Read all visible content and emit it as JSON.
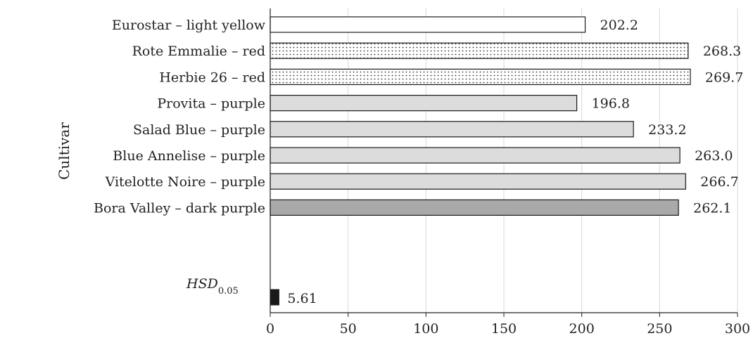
{
  "chart_data": {
    "type": "bar",
    "orientation": "horizontal",
    "ylabel": "Cultivar",
    "xlabel": "",
    "xlim": [
      0,
      300
    ],
    "xticks": [
      0,
      50,
      100,
      150,
      200,
      250,
      300
    ],
    "grid": "vertical",
    "bars": [
      {
        "label": "Eurostar – light yellow",
        "value": 202.2,
        "value_label": "202.2",
        "fill": "white"
      },
      {
        "label": "Rote Emmalie – red",
        "value": 268.3,
        "value_label": "268.3",
        "fill": "dotted"
      },
      {
        "label": "Herbie 26 – red",
        "value": 269.7,
        "value_label": "269.7",
        "fill": "dotted"
      },
      {
        "label": "Provita – purple",
        "value": 196.8,
        "value_label": "196.8",
        "fill": "light-gray"
      },
      {
        "label": "Salad Blue – purple",
        "value": 233.2,
        "value_label": "233.2",
        "fill": "light-gray"
      },
      {
        "label": "Blue Annelise – purple",
        "value": 263.0,
        "value_label": "263.0",
        "fill": "light-gray"
      },
      {
        "label": "Vitelotte Noire – purple",
        "value": 266.7,
        "value_label": "266.7",
        "fill": "light-gray"
      },
      {
        "label": "Bora Valley – dark purple",
        "value": 262.1,
        "value_label": "262.1",
        "fill": "dark-gray"
      }
    ],
    "hsd": {
      "label": "HSD",
      "subscript": "0.05",
      "value": 5.61,
      "value_label": "5.61",
      "fill": "black"
    }
  },
  "colors": {
    "white": "#ffffff",
    "light-gray": "#dcdcdc",
    "dark-gray": "#a9a9a9",
    "black": "#1a1a1a",
    "grid": "#d9d9d9",
    "axis": "#222222"
  }
}
